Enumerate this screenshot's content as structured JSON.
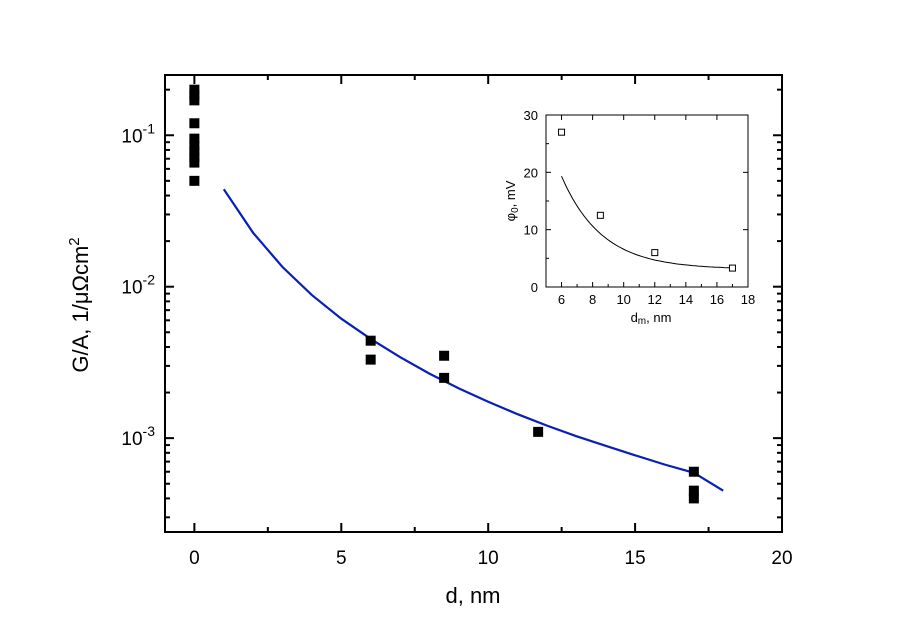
{
  "chart_data": [
    {
      "type": "scatter",
      "xlabel": "d, nm",
      "ylabel": "G/A, 1/μΩcm",
      "ylabel_sup": "2",
      "xlim": [
        -1,
        20
      ],
      "ylim": [
        0.00024,
        0.25
      ],
      "yscale": "log",
      "xticks": [
        0,
        5,
        10,
        15,
        20
      ],
      "yticks": [
        {
          "value": 0.001,
          "base": "10",
          "exp": "-3"
        },
        {
          "value": 0.01,
          "base": "10",
          "exp": "-2"
        },
        {
          "value": 0.1,
          "base": "10",
          "exp": "-1"
        }
      ],
      "series": [
        {
          "kind": "points",
          "marker": "filled-square",
          "color": "#000000",
          "x": [
            0,
            0,
            0,
            0,
            0,
            0,
            0,
            0,
            0,
            0,
            6,
            6,
            8.5,
            8.5,
            11.7,
            17,
            17,
            17
          ],
          "y": [
            0.2,
            0.185,
            0.17,
            0.12,
            0.095,
            0.085,
            0.078,
            0.072,
            0.066,
            0.05,
            0.0044,
            0.0033,
            0.0035,
            0.0025,
            0.0011,
            0.0006,
            0.00045,
            0.0004
          ]
        },
        {
          "kind": "line",
          "color": "#0a1fb4",
          "x": [
            1,
            2,
            3,
            4,
            5,
            6,
            7,
            8,
            9,
            10,
            11,
            12,
            13,
            14,
            15,
            16,
            17,
            18
          ],
          "y": [
            0.044,
            0.0227,
            0.0135,
            0.0088,
            0.00615,
            0.00452,
            0.00343,
            0.00267,
            0.00213,
            0.00174,
            0.00144,
            0.00121,
            0.00103,
            0.00089,
            0.00077,
            0.00067,
            0.00059,
            0.00045
          ]
        }
      ]
    },
    {
      "type": "scatter",
      "xlabel": "d",
      "xlabel_sub": "m",
      "xlabel_rest": ", nm",
      "ylabel": "φ",
      "ylabel_sub": "0",
      "ylabel_rest": ", mV",
      "xlim": [
        5,
        18
      ],
      "ylim": [
        0,
        30
      ],
      "xticks": [
        6,
        8,
        10,
        12,
        14,
        16,
        18
      ],
      "yticks": [
        0,
        10,
        20,
        30
      ],
      "series": [
        {
          "kind": "points",
          "marker": "open-square",
          "color": "#000000",
          "x": [
            6,
            8.5,
            12,
            17
          ],
          "y": [
            27,
            12.5,
            6,
            3.3
          ]
        },
        {
          "kind": "line",
          "color": "#000000",
          "fit": {
            "form": "exp_decay",
            "A": 3.1,
            "B": 163,
            "tau": 2.6
          },
          "x_range": [
            6,
            17
          ]
        }
      ]
    }
  ]
}
